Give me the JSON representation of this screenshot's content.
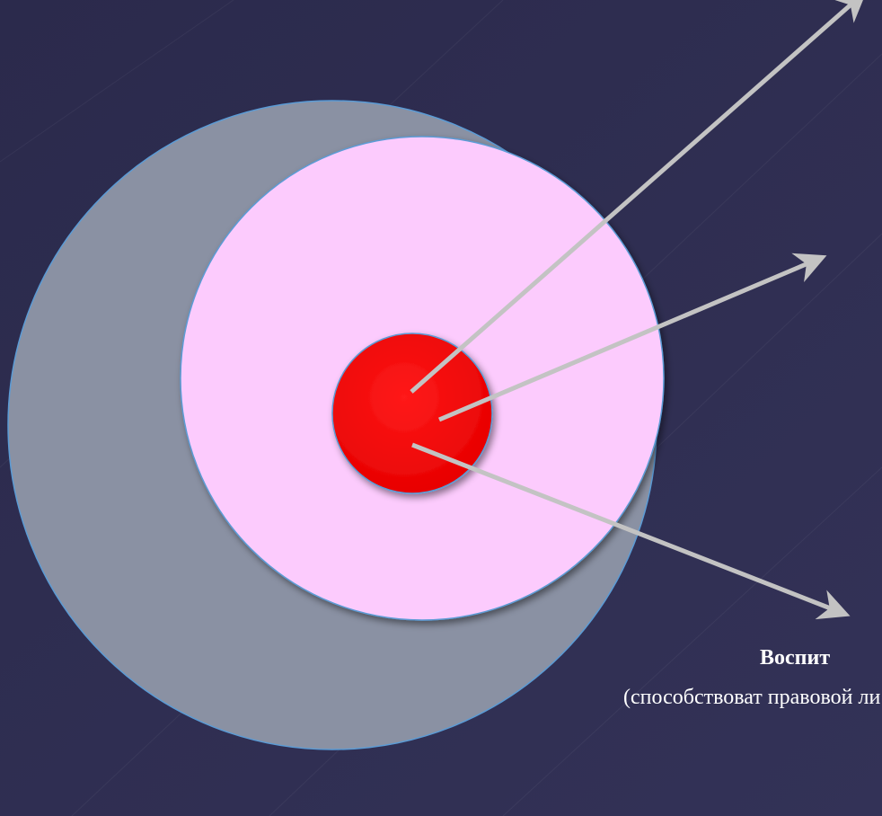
{
  "colors": {
    "background": "#2e2c50",
    "outer_ring": "#8a91a3",
    "middle_ring": "#fccbfd",
    "core": "#ff0000",
    "arrows": "#c3c3c3",
    "ring_outline": "#5b9bd5"
  },
  "diagram": {
    "rings": [
      "outer-ring",
      "middle-ring",
      "core"
    ],
    "arrow_count": 3
  },
  "caption": {
    "title": "Воспит",
    "body": "(способствоват правовой ли числе."
  }
}
